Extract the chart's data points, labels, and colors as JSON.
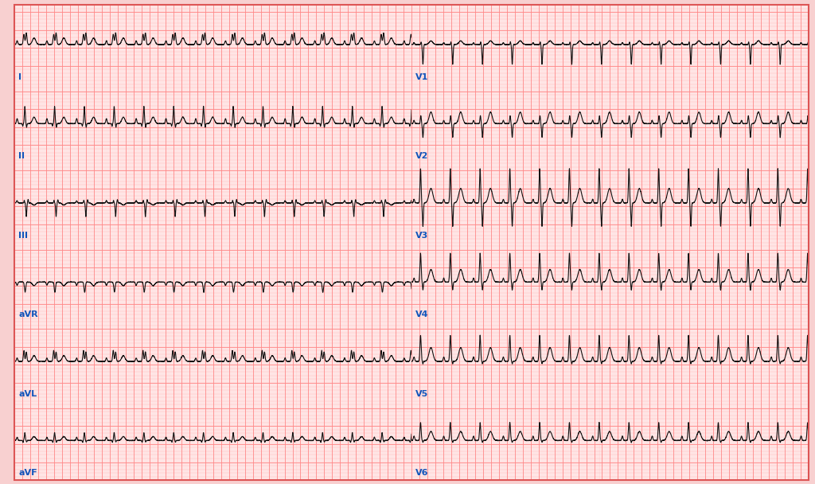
{
  "bg_color": "#FFF0F0",
  "bg_outer": "#F8D0D0",
  "grid_minor_color": "#FFB0B0",
  "grid_major_color": "#FF8888",
  "line_color": "#111111",
  "label_color": "#1155BB",
  "border_color": "#DD5555",
  "leads_left": [
    "I",
    "II",
    "III",
    "aVR",
    "aVL",
    "aVF"
  ],
  "leads_right": [
    "V1",
    "V2",
    "V3",
    "V4",
    "V5",
    "V6"
  ],
  "fig_width": 10.24,
  "fig_height": 6.08,
  "label_fontsize": 8,
  "hr": 80,
  "duration": 10.0,
  "fs": 500,
  "line_width": 0.8
}
